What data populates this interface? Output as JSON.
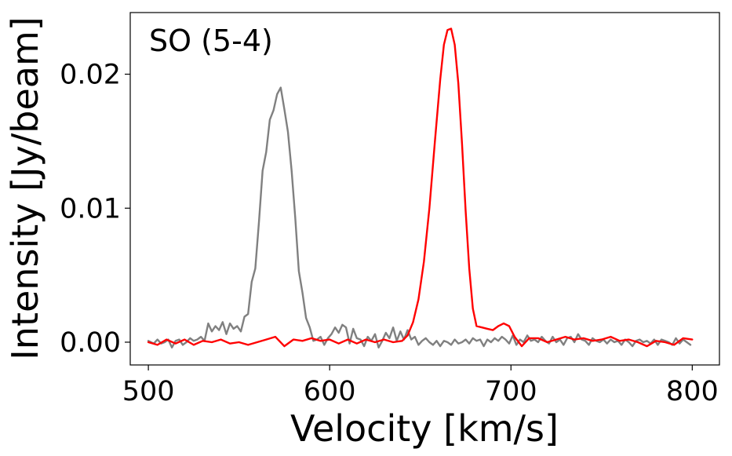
{
  "chart_data": {
    "type": "line",
    "title": "",
    "xlabel": "Velocity [km/s]",
    "ylabel": "Intensity [Jy/beam]",
    "annotation": "SO (5-4)",
    "xlim": [
      490,
      815
    ],
    "ylim": [
      -0.0017,
      0.0246
    ],
    "xticks": [
      500,
      600,
      700,
      800
    ],
    "xtick_labels": [
      "500",
      "600",
      "700",
      "800"
    ],
    "yticks": [
      0.0,
      0.01,
      0.02
    ],
    "ytick_labels": [
      "0.00",
      "0.01",
      "0.02"
    ],
    "grid": false,
    "legend": "none",
    "series": [
      {
        "color": "#808080",
        "x": [
          500,
          503,
          505,
          507,
          509,
          511,
          513,
          515,
          517,
          519,
          521,
          523,
          525,
          527,
          529,
          531,
          533,
          535,
          537,
          539,
          541,
          543,
          545,
          547,
          549,
          551,
          553,
          555,
          557,
          559,
          561,
          563,
          565,
          567,
          569,
          571,
          573,
          575,
          577,
          579,
          581,
          583,
          585,
          587,
          589,
          591,
          593,
          595,
          597,
          599,
          601,
          603,
          605,
          607,
          609,
          611,
          613,
          615,
          617,
          619,
          621,
          623,
          625,
          627,
          629,
          631,
          633,
          635,
          637,
          639,
          641,
          643,
          645,
          647,
          649,
          651,
          653,
          655,
          657,
          659,
          661,
          663,
          665,
          667,
          669,
          671,
          673,
          675,
          677,
          679,
          681,
          683,
          685,
          687,
          689,
          691,
          693,
          695,
          697,
          699,
          701,
          703,
          705,
          707,
          709,
          711,
          713,
          715,
          717,
          719,
          721,
          723,
          725,
          727,
          729,
          731,
          733,
          735,
          737,
          739,
          741,
          743,
          745,
          747,
          749,
          751,
          753,
          755,
          757,
          759,
          761,
          763,
          765,
          767,
          769,
          771,
          773,
          775,
          777,
          779,
          781,
          783,
          785,
          787,
          789,
          791,
          793,
          795,
          797,
          799
        ],
        "values": [
          0.0001,
          -0.0001,
          0.0002,
          -0.0001,
          0.0,
          0.0002,
          -0.0004,
          0.0001,
          0.0002,
          -0.0002,
          0.0,
          0.0003,
          0.0001,
          0.0002,
          0.0004,
          0.0001,
          0.0014,
          0.0008,
          0.0012,
          0.0009,
          0.0015,
          0.0006,
          0.0014,
          0.001,
          0.0012,
          0.0008,
          0.0019,
          0.0021,
          0.0045,
          0.0055,
          0.009,
          0.0128,
          0.0142,
          0.0166,
          0.0173,
          0.0185,
          0.019,
          0.0174,
          0.0157,
          0.0128,
          0.0093,
          0.0053,
          0.0037,
          0.0018,
          0.0011,
          0.0001,
          0.0002,
          0.0004,
          -0.0002,
          0.0003,
          0.0006,
          0.0011,
          0.0007,
          0.0013,
          0.0011,
          -0.0001,
          0.001,
          0.0003,
          0.0002,
          -0.0003,
          0.0004,
          0.0001,
          0.0006,
          -0.0004,
          0.0001,
          0.0007,
          0.0003,
          0.0011,
          0.0001,
          0.0008,
          0.0002,
          0.0009,
          0.0002,
          0.0004,
          -0.0002,
          0.0001,
          0.0003,
          0.0,
          -0.0002,
          0.0001,
          -0.0003,
          0.0001,
          0.0,
          -0.0002,
          0.0002,
          -0.0001,
          0.0,
          0.0002,
          -0.0001,
          0.0003,
          0.0001,
          0.0002,
          -0.0003,
          0.0002,
          0.0,
          0.0003,
          0.0001,
          0.0004,
          0.0002,
          -0.0001,
          0.0005,
          -0.0002,
          0.0002,
          0.0,
          0.0005,
          0.0001,
          0.0002,
          0.0,
          0.0004,
          0.0001,
          -0.0001,
          0.0004,
          0.0,
          0.0002,
          -0.0002,
          0.0003,
          0.0004,
          0.0,
          0.0006,
          0.0002,
          0.0001,
          -0.0002,
          0.0003,
          0.0001,
          0.0,
          0.0002,
          -0.0001,
          0.0002,
          0.0,
          0.0001,
          -0.0002,
          0.0002,
          0.0,
          -0.0003,
          0.0001,
          0.0002,
          0.0,
          0.0001,
          -0.0001,
          0.0002,
          -0.0002,
          0.0002,
          0.0001,
          0.0,
          -0.0002,
          0.0003,
          -0.0001,
          0.0002,
          0.0,
          -0.0002
        ]
      },
      {
        "color": "#ff0000",
        "x": [
          500,
          505,
          510,
          515,
          520,
          525,
          530,
          535,
          540,
          545,
          550,
          555,
          560,
          565,
          570,
          575,
          580,
          585,
          590,
          595,
          600,
          605,
          610,
          615,
          620,
          625,
          630,
          635,
          640,
          643,
          646,
          649,
          652,
          655,
          658,
          661,
          663,
          665,
          667,
          669,
          671,
          673,
          675,
          677,
          679,
          681,
          684,
          687,
          690,
          693,
          696,
          699,
          702,
          706,
          710,
          715,
          720,
          725,
          730,
          735,
          740,
          745,
          750,
          755,
          760,
          765,
          770,
          775,
          780,
          785,
          790,
          795,
          800
        ],
        "values": [
          0.0,
          -0.0002,
          0.0002,
          -0.0001,
          0.0002,
          -0.0002,
          0.0001,
          0.0,
          0.0002,
          -0.0001,
          0.0,
          -0.0002,
          0.0,
          0.0002,
          0.0004,
          -0.0003,
          0.0002,
          0.0001,
          0.0003,
          0.0001,
          0.0002,
          -0.0001,
          0.0002,
          -0.0001,
          0.0002,
          0.0,
          0.0002,
          0.0,
          0.0001,
          0.0005,
          0.0015,
          0.0032,
          0.006,
          0.01,
          0.0149,
          0.0196,
          0.0222,
          0.0233,
          0.0234,
          0.0222,
          0.0193,
          0.0148,
          0.0098,
          0.0055,
          0.0025,
          0.0012,
          0.0011,
          0.001,
          0.0009,
          0.0012,
          0.0014,
          0.0012,
          0.0004,
          -0.0003,
          0.0003,
          0.0003,
          0.0,
          0.0002,
          0.0004,
          0.0002,
          0.0003,
          0.0001,
          0.0002,
          0.0004,
          0.0001,
          0.0002,
          0.0,
          -0.0003,
          0.0001,
          0.0,
          -0.0002,
          0.0003,
          0.0002
        ]
      }
    ]
  }
}
